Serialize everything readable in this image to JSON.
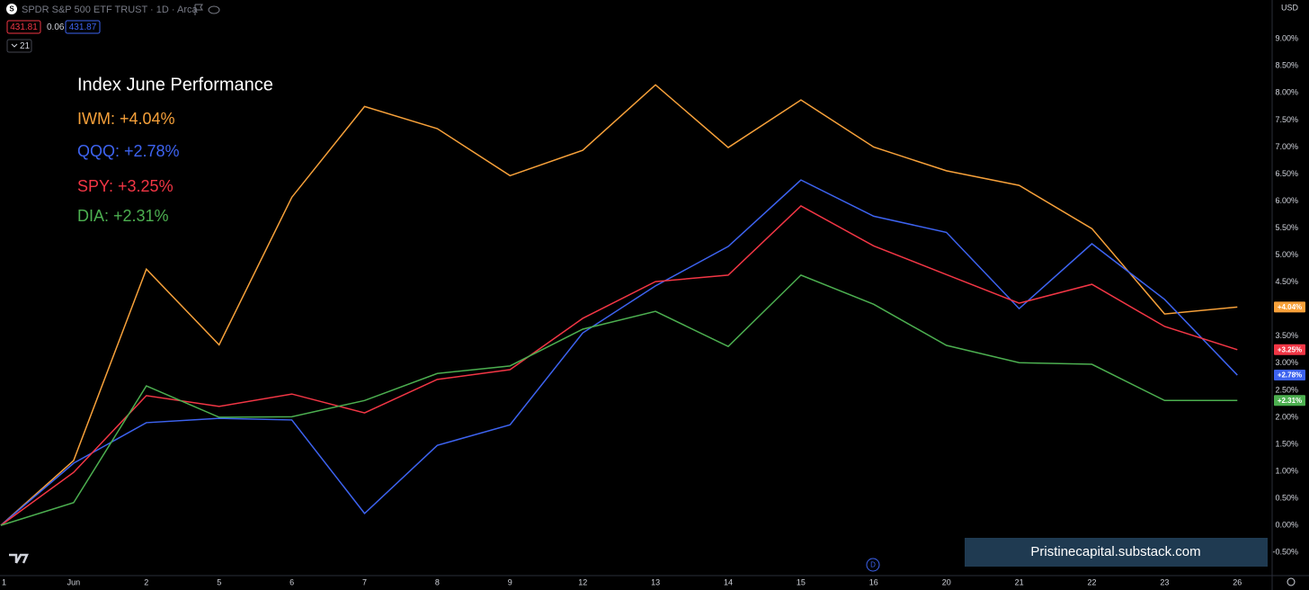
{
  "chart_data": {
    "type": "line",
    "title": "Index June Performance",
    "categories": [
      "1",
      "Jun",
      "2",
      "5",
      "6",
      "7",
      "8",
      "9",
      "12",
      "13",
      "14",
      "15",
      "16",
      "20",
      "21",
      "22",
      "23",
      "26"
    ],
    "series": [
      {
        "name": "IWM: +4.04%",
        "color": "#f7a13a",
        "end_label": "+4.04%",
        "values": [
          0,
          1.2,
          4.74,
          3.34,
          6.07,
          7.75,
          7.34,
          6.47,
          6.94,
          8.15,
          6.99,
          7.87,
          7.0,
          6.56,
          6.29,
          5.49,
          3.91,
          4.04
        ]
      },
      {
        "name": "QQQ: +2.78%",
        "color": "#3d63f0",
        "end_label": "+2.78%",
        "values": [
          0,
          1.15,
          1.9,
          1.98,
          1.95,
          0.22,
          1.48,
          1.86,
          3.56,
          4.43,
          5.16,
          6.39,
          5.72,
          5.42,
          4.01,
          5.21,
          4.18,
          2.78
        ]
      },
      {
        "name": "SPY: +3.25%",
        "color": "#f23645",
        "end_label": "+3.25%",
        "values": [
          0,
          0.98,
          2.4,
          2.2,
          2.43,
          2.08,
          2.7,
          2.88,
          3.83,
          4.51,
          4.63,
          5.91,
          5.17,
          4.64,
          4.11,
          4.46,
          3.68,
          3.25
        ]
      },
      {
        "name": "DIA: +2.31%",
        "color": "#4caf50",
        "end_label": "+2.31%",
        "values": [
          0,
          0.42,
          2.58,
          2.0,
          2.01,
          2.31,
          2.81,
          2.95,
          3.63,
          3.96,
          3.31,
          4.63,
          4.09,
          3.33,
          3.01,
          2.98,
          2.31,
          2.31
        ]
      }
    ],
    "ylim": [
      -0.93,
      9.72
    ],
    "yticks": [
      {
        "value": -0.5,
        "label": "-0.50%"
      },
      {
        "value": 0,
        "label": "0.00%"
      },
      {
        "value": 0.5,
        "label": "0.50%"
      },
      {
        "value": 1,
        "label": "1.00%"
      },
      {
        "value": 1.5,
        "label": "1.50%"
      },
      {
        "value": 2,
        "label": "2.00%"
      },
      {
        "value": 2.5,
        "label": "2.50%"
      },
      {
        "value": 3,
        "label": "3.00%"
      },
      {
        "value": 3.5,
        "label": "3.50%"
      },
      {
        "value": 4,
        "label": "4.00%"
      },
      {
        "value": 4.5,
        "label": "4.50%"
      },
      {
        "value": 5,
        "label": "5.00%"
      },
      {
        "value": 5.5,
        "label": "5.50%"
      },
      {
        "value": 6,
        "label": "6.00%"
      },
      {
        "value": 6.5,
        "label": "6.50%"
      },
      {
        "value": 7,
        "label": "7.00%"
      },
      {
        "value": 7.5,
        "label": "7.50%"
      },
      {
        "value": 8,
        "label": "8.00%"
      },
      {
        "value": 8.5,
        "label": "8.50%"
      },
      {
        "value": 9,
        "label": "9.00%"
      }
    ],
    "grid": false
  },
  "ui": {
    "symbol_icon": "S",
    "symbol": "SPDR S&P 500 ETF TRUST · 1D · Arca",
    "bid": "431.81",
    "spread": "0.06",
    "ask": "431.87",
    "indicator_count": "21",
    "currency": "USD",
    "watermark": "Pristinecapital.substack.com",
    "event_marker": "D"
  }
}
